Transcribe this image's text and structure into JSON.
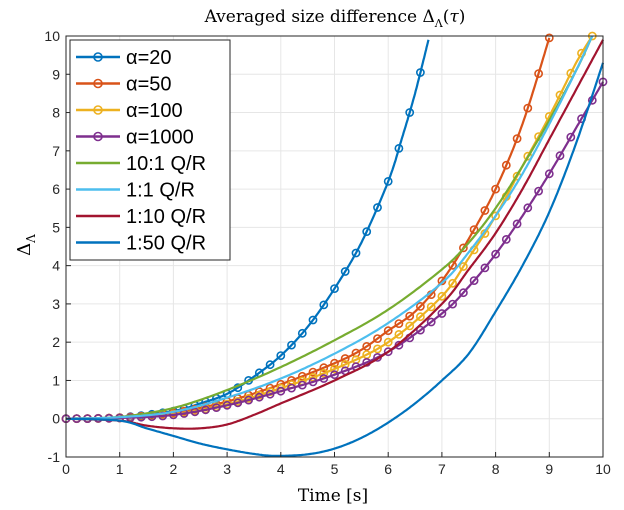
{
  "chart_data": {
    "type": "line",
    "title": "Averaged size difference Δ_Λ(τ)",
    "xlabel": "Time [s]",
    "ylabel": "Δ_Λ",
    "xlim": [
      0,
      10
    ],
    "ylim": [
      -1,
      10
    ],
    "xticks": [
      "0",
      "1",
      "2",
      "3",
      "4",
      "5",
      "6",
      "7",
      "8",
      "9",
      "10"
    ],
    "yticks": [
      "-1",
      "0",
      "1",
      "2",
      "3",
      "4",
      "5",
      "6",
      "7",
      "8",
      "9",
      "10"
    ],
    "grid": true,
    "legend_position": "top-left",
    "series": [
      {
        "name": "α=20",
        "color": "#0072BD",
        "marker": "circle",
        "x": [
          0,
          1,
          2,
          2.5,
          3,
          3.5,
          4,
          4.5,
          5,
          5.5,
          6,
          6.25,
          6.5,
          6.75
        ],
        "y": [
          0,
          0.03,
          0.2,
          0.4,
          0.65,
          1.1,
          1.65,
          2.4,
          3.4,
          4.6,
          6.2,
          7.3,
          8.5,
          9.9
        ]
      },
      {
        "name": "α=50",
        "color": "#D95319",
        "marker": "circle",
        "x": [
          0,
          1,
          2,
          3,
          4,
          5,
          5.5,
          6,
          6.5,
          7,
          7.5,
          8,
          8.5,
          9
        ],
        "y": [
          0,
          0.03,
          0.15,
          0.45,
          0.9,
          1.45,
          1.8,
          2.3,
          2.8,
          3.6,
          4.7,
          6.0,
          7.7,
          9.95
        ]
      },
      {
        "name": "α=100",
        "color": "#EDB120",
        "marker": "circle",
        "x": [
          0,
          1,
          2,
          3,
          4,
          5,
          6,
          7,
          7.5,
          8,
          8.5,
          9,
          9.5,
          9.8
        ],
        "y": [
          0,
          0.02,
          0.12,
          0.38,
          0.8,
          1.3,
          2.0,
          3.2,
          4.2,
          5.3,
          6.6,
          7.9,
          9.3,
          10
        ]
      },
      {
        "name": "α=1000",
        "color": "#7E2F8E",
        "marker": "circle",
        "x": [
          0,
          1,
          2,
          3,
          4,
          5,
          6,
          7,
          7.5,
          8,
          8.5,
          9,
          9.5,
          10
        ],
        "y": [
          0,
          0.02,
          0.1,
          0.35,
          0.72,
          1.15,
          1.75,
          2.75,
          3.45,
          4.3,
          5.3,
          6.4,
          7.6,
          8.8
        ]
      },
      {
        "name": "10:1 Q/R",
        "color": "#77AC30",
        "marker": "none",
        "x": [
          0,
          1,
          2,
          3,
          4,
          5,
          6,
          7,
          7.5,
          8,
          8.5,
          9,
          9.5,
          9.8
        ],
        "y": [
          0,
          0.05,
          0.28,
          0.75,
          1.35,
          2.05,
          2.85,
          3.9,
          4.6,
          5.5,
          6.6,
          7.8,
          9.1,
          10
        ]
      },
      {
        "name": "1:1 Q/R",
        "color": "#4DBEEE",
        "marker": "none",
        "x": [
          0,
          1,
          2,
          3,
          4,
          5,
          6,
          7,
          7.5,
          8,
          8.5,
          9,
          9.5,
          9.8
        ],
        "y": [
          0,
          0.04,
          0.18,
          0.55,
          1.05,
          1.7,
          2.5,
          3.55,
          4.35,
          5.3,
          6.4,
          7.7,
          9.1,
          10
        ]
      },
      {
        "name": "1:10 Q/R",
        "color": "#A2142F",
        "marker": "none",
        "x": [
          0,
          1,
          1.5,
          2,
          2.5,
          3,
          3.5,
          4,
          5,
          6,
          7,
          7.5,
          8,
          8.5,
          9,
          9.5,
          10
        ],
        "y": [
          0,
          -0.05,
          -0.18,
          -0.25,
          -0.25,
          -0.15,
          0.1,
          0.4,
          1.0,
          1.75,
          3.0,
          3.9,
          4.85,
          6.0,
          7.3,
          8.6,
          9.9
        ]
      },
      {
        "name": "1:50 Q/R",
        "color": "#0072BD",
        "marker": "none",
        "x": [
          0,
          1,
          1.5,
          2,
          2.5,
          3,
          3.5,
          3.9,
          4.5,
          5,
          5.5,
          6,
          6.5,
          7,
          7.5,
          8,
          8.5,
          9,
          9.5,
          10
        ],
        "y": [
          0,
          -0.05,
          -0.25,
          -0.45,
          -0.65,
          -0.8,
          -0.92,
          -0.97,
          -0.93,
          -0.78,
          -0.5,
          -0.1,
          0.4,
          1.0,
          1.7,
          2.8,
          4.0,
          5.4,
          7.2,
          9.3
        ]
      }
    ]
  }
}
